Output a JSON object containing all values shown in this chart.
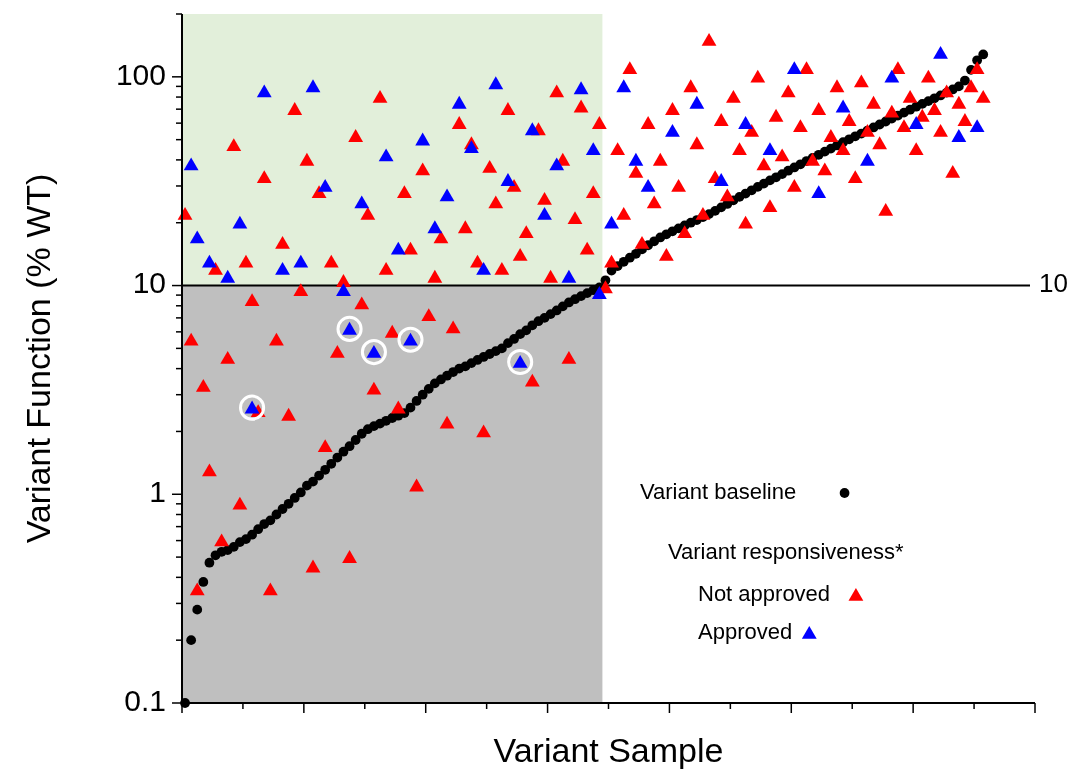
{
  "chart_data": {
    "type": "scatter",
    "xlabel": "Variant Sample",
    "ylabel": "Variant Function (% WT)",
    "legend_title": "Variant responsiveness*",
    "log": "y",
    "legend": "bottom right",
    "tick_labels": "y",
    "categories": [
      null,
      null,
      null,
      null,
      null,
      null,
      null,
      null,
      null,
      null,
      null,
      null,
      null,
      null,
      null,
      null,
      null,
      null,
      null,
      null,
      null,
      null,
      null,
      null,
      null,
      null,
      null,
      null,
      null,
      null,
      null,
      null,
      null,
      null,
      null,
      null,
      null,
      null,
      null,
      null,
      null,
      null,
      null,
      null,
      null,
      null,
      null,
      null,
      null,
      null,
      null,
      null,
      null,
      null,
      null,
      null,
      null,
      null,
      null,
      null,
      null,
      null,
      null,
      null,
      null,
      null,
      null,
      null,
      null,
      null,
      null,
      null,
      null,
      null,
      null,
      null,
      null,
      null,
      null,
      null,
      null,
      null,
      null,
      null,
      null,
      null,
      null,
      null,
      null,
      null,
      null,
      null,
      null,
      null,
      null,
      null,
      null,
      null,
      null,
      null,
      null,
      null,
      null,
      null,
      null,
      null,
      null,
      null,
      null,
      null,
      null,
      null,
      null,
      null,
      null,
      null,
      null,
      null,
      null,
      null,
      null,
      null,
      null,
      null,
      null,
      null,
      null,
      null,
      null,
      null,
      null,
      null,
      null,
      null,
      null,
      null,
      null,
      null,
      null,
      null
    ],
    "ylim": [
      0.1,
      200
    ],
    "yticks": [
      0.1,
      {
        "value": 0.2,
        "label": null
      },
      {
        "value": 0.3,
        "label": null
      },
      {
        "value": 0.4,
        "label": null
      },
      {
        "value": 0.5,
        "label": null
      },
      {
        "value": 0.6,
        "label": null
      },
      {
        "value": 0.7,
        "label": null
      },
      {
        "value": 0.8,
        "label": null
      },
      {
        "value": 0.9,
        "label": null
      },
      1,
      {
        "value": 2,
        "label": null
      },
      {
        "value": 3,
        "label": null
      },
      {
        "value": 4,
        "label": null
      },
      {
        "value": 5,
        "label": null
      },
      {
        "value": 6,
        "label": null
      },
      {
        "value": 7,
        "label": null
      },
      {
        "value": 8,
        "label": null
      },
      {
        "value": 9,
        "label": null
      },
      10,
      {
        "value": 20,
        "label": null
      },
      {
        "value": 30,
        "label": null
      },
      {
        "value": 40,
        "label": null
      },
      {
        "value": 50,
        "label": null
      },
      {
        "value": 60,
        "label": null
      },
      {
        "value": 70,
        "label": null
      },
      {
        "value": 80,
        "label": null
      },
      {
        "value": 90,
        "label": null
      },
      100,
      {
        "value": 200,
        "label": null
      }
    ],
    "bands": [
      {
        "axis": "y",
        "from": 10,
        "to": 200,
        "color": "#e2efda"
      },
      {
        "axis": "y",
        "from": 0.1,
        "to": 10,
        "color": "#bfbfbf"
      }
    ],
    "ref_lines": [
      {
        "axis": "y",
        "value": 10,
        "label": "10",
        "color": "#000000"
      }
    ],
    "series": [
      {
        "name": "Variant baseline",
        "color": "#000000",
        "marker": "circle",
        "values": [
          0.1,
          0.2,
          0.28,
          0.38,
          0.47,
          0.51,
          0.53,
          0.54,
          0.56,
          0.59,
          0.61,
          0.64,
          0.68,
          0.72,
          0.75,
          0.8,
          0.85,
          0.9,
          0.96,
          1.02,
          1.1,
          1.15,
          1.23,
          1.31,
          1.4,
          1.5,
          1.6,
          1.7,
          1.82,
          1.95,
          2.05,
          2.12,
          2.18,
          2.25,
          2.32,
          2.38,
          2.45,
          2.6,
          2.8,
          3.0,
          3.2,
          3.4,
          3.55,
          3.7,
          3.85,
          4.0,
          4.1,
          4.25,
          4.4,
          4.55,
          4.7,
          4.85,
          5.0,
          5.3,
          5.55,
          5.85,
          6.1,
          6.45,
          6.75,
          7.0,
          7.3,
          7.6,
          7.95,
          8.3,
          8.6,
          8.9,
          9.2,
          9.5,
          9.8,
          10.6,
          11.8,
          12.4,
          13.0,
          13.6,
          14.2,
          14.9,
          15.6,
          16.3,
          17.0,
          17.6,
          18.2,
          18.8,
          19.4,
          20.0,
          20.6,
          21.3,
          22.0,
          22.8,
          23.7,
          24.6,
          25.6,
          26.6,
          27.6,
          28.6,
          29.7,
          30.8,
          31.9,
          33.0,
          34.2,
          35.5,
          36.8,
          38.1,
          39.5,
          40.9,
          42.3,
          43.8,
          45.3,
          46.9,
          48.6,
          50.2,
          51.9,
          53.5,
          55.3,
          57.2,
          59.1,
          61.1,
          63.1,
          65.2,
          67.4,
          69.6,
          71.9,
          74.2,
          76.5,
          78.9,
          81.4,
          84.0,
          87.0,
          90.0,
          96,
          108,
          120,
          128,
          null,
          null,
          null,
          null,
          null,
          null,
          null,
          null
        ]
      },
      {
        "name": "Not approved",
        "color": "#ff0000",
        "marker": "triangle",
        "values": [
          22,
          5.5,
          0.35,
          3.3,
          1.3,
          12,
          0.6,
          4.5,
          47,
          0.9,
          13,
          8.5,
          2.5,
          33,
          0.35,
          5.5,
          16,
          2.4,
          70,
          9.5,
          40,
          0.45,
          28,
          1.7,
          13,
          4.8,
          10.5,
          0.5,
          52,
          8.2,
          22,
          3.2,
          80,
          12,
          6,
          2.6,
          28,
          15,
          1.1,
          36,
          7.2,
          11,
          17,
          2.2,
          6.3,
          60,
          19,
          48,
          13,
          2.0,
          37,
          25,
          12,
          70,
          30,
          14,
          18,
          3.5,
          56,
          26,
          11,
          85,
          40,
          4.5,
          21,
          72,
          15,
          28,
          60,
          9.8,
          13,
          45,
          22,
          110,
          35,
          16,
          60,
          25,
          40,
          14,
          70,
          30,
          18,
          90,
          48,
          22,
          150,
          33,
          62,
          27,
          80,
          45,
          20,
          55,
          100,
          38,
          24,
          65,
          42,
          85,
          30,
          58,
          110,
          40,
          70,
          36,
          52,
          90,
          45,
          62,
          33,
          95,
          55,
          75,
          48,
          23,
          68,
          110,
          58,
          80,
          45,
          65,
          100,
          70,
          55,
          85,
          35,
          75,
          62,
          90,
          110,
          80,
          null,
          null,
          null,
          null,
          null,
          null,
          null,
          null
        ]
      },
      {
        "name": "Approved",
        "color": "#0000ff",
        "marker": "triangle",
        "values": [
          null,
          38,
          17,
          null,
          13,
          null,
          null,
          11,
          null,
          20,
          null,
          2.6,
          null,
          85,
          null,
          null,
          12,
          null,
          null,
          13,
          null,
          90,
          null,
          30,
          null,
          null,
          9.5,
          6.2,
          null,
          25,
          null,
          4.8,
          null,
          42,
          null,
          15,
          null,
          5.5,
          null,
          50,
          null,
          19,
          null,
          27,
          null,
          75,
          null,
          46,
          null,
          12,
          null,
          93,
          null,
          32,
          null,
          4.3,
          null,
          56,
          null,
          22,
          null,
          38,
          null,
          11,
          null,
          88,
          null,
          45,
          9.2,
          null,
          20,
          null,
          90,
          null,
          40,
          null,
          30,
          null,
          null,
          null,
          55,
          null,
          null,
          null,
          75,
          null,
          null,
          null,
          32,
          null,
          null,
          null,
          60,
          null,
          null,
          null,
          45,
          null,
          null,
          null,
          110,
          null,
          null,
          null,
          28,
          null,
          null,
          null,
          72,
          null,
          null,
          null,
          40,
          null,
          null,
          null,
          100,
          null,
          null,
          null,
          60,
          null,
          null,
          null,
          130,
          null,
          null,
          52,
          null,
          null,
          58,
          null,
          null,
          null,
          null,
          null,
          null,
          null,
          null,
          null
        ]
      },
      {
        "color": "#ffffff",
        "marker": "circle",
        "values": [
          null,
          null,
          null,
          null,
          null,
          null,
          null,
          null,
          null,
          null,
          null,
          2.6,
          null,
          null,
          null,
          null,
          null,
          null,
          null,
          null,
          null,
          null,
          null,
          null,
          null,
          null,
          null,
          6.2,
          null,
          null,
          null,
          4.8,
          null,
          null,
          null,
          null,
          null,
          5.5,
          null,
          null,
          null,
          null,
          null,
          null,
          null,
          null,
          null,
          null,
          null,
          null,
          null,
          null,
          null,
          null,
          null,
          4.3,
          null,
          null,
          null,
          null,
          null,
          null,
          null,
          null,
          null,
          null,
          null,
          null,
          null,
          null,
          null,
          null,
          null,
          null,
          null,
          null,
          null,
          null,
          null,
          null,
          null,
          null,
          null,
          null,
          null,
          null,
          null,
          null,
          null,
          null,
          null,
          null,
          null,
          null,
          null,
          null,
          null,
          null,
          null,
          null,
          null,
          null,
          null,
          null,
          null,
          null,
          null,
          null,
          null,
          null,
          null,
          null,
          null,
          null,
          null,
          null,
          null,
          null,
          null,
          null,
          null,
          null,
          null,
          null,
          null,
          null,
          null,
          null,
          null,
          null,
          null,
          null,
          null,
          null,
          null,
          null,
          null,
          null,
          null,
          null
        ]
      }
    ]
  }
}
